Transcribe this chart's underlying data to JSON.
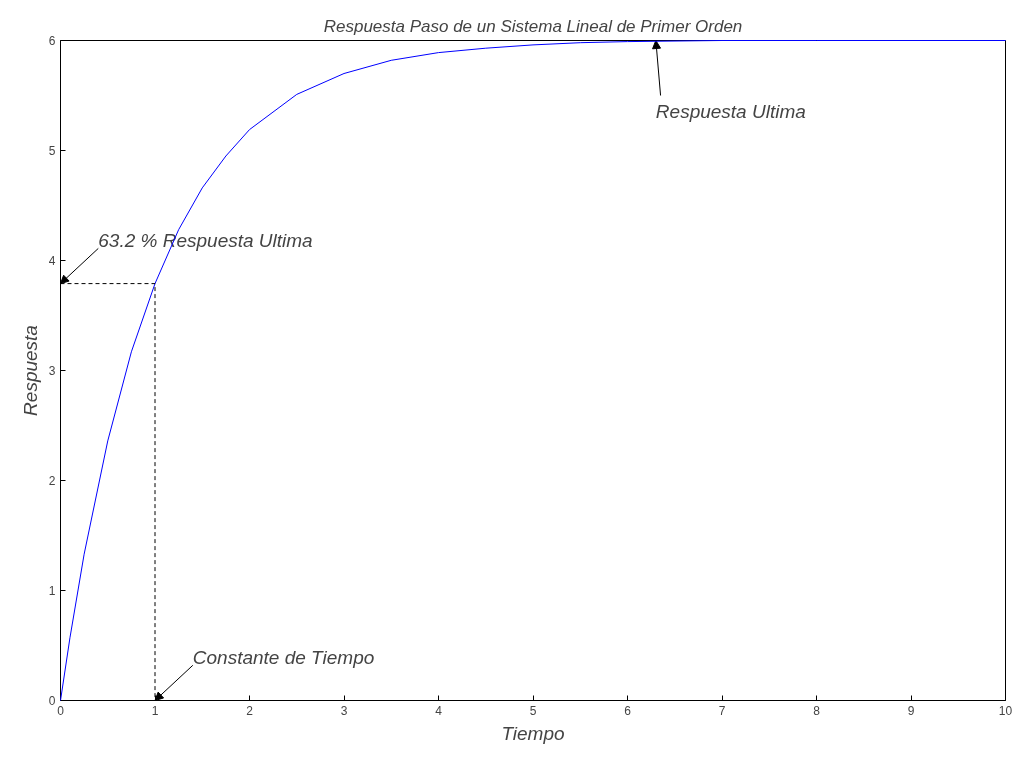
{
  "chart_data": {
    "type": "line",
    "title": "Respuesta Paso de un Sistema Lineal de Primer Orden",
    "xlabel": "Tiempo",
    "ylabel": "Respuesta",
    "xlim": [
      0,
      10
    ],
    "ylim": [
      0,
      6
    ],
    "xticks": [
      0,
      1,
      2,
      3,
      4,
      5,
      6,
      7,
      8,
      9,
      10
    ],
    "yticks": [
      0,
      1,
      2,
      3,
      4,
      5,
      6
    ],
    "grid": false,
    "series": [
      {
        "color": "#0000ff",
        "line_style": "solid",
        "x": [
          0,
          0.1,
          0.25,
          0.5,
          0.75,
          1,
          1.25,
          1.5,
          1.75,
          2,
          2.5,
          3,
          3.5,
          4,
          4.5,
          5,
          5.5,
          6,
          7,
          8,
          9,
          10
        ],
        "values": [
          0,
          0.57,
          1.33,
          2.36,
          3.17,
          3.79,
          4.28,
          4.66,
          4.95,
          5.19,
          5.51,
          5.7,
          5.82,
          5.89,
          5.93,
          5.96,
          5.98,
          5.99,
          6.0,
          6.0,
          6.0,
          6.0
        ]
      },
      {
        "color": "#000000",
        "line_style": "dashed",
        "x": [
          0,
          1,
          1
        ],
        "values": [
          3.79,
          3.79,
          0
        ]
      }
    ],
    "annotations": [
      {
        "text": "Respuesta Ultima",
        "x": 6.3,
        "y": 6
      },
      {
        "text": "63.2 % Respuesta Ultima",
        "x": 0,
        "y": 3.79
      },
      {
        "text": "Constante de Tiempo",
        "x": 1,
        "y": 0
      }
    ]
  }
}
